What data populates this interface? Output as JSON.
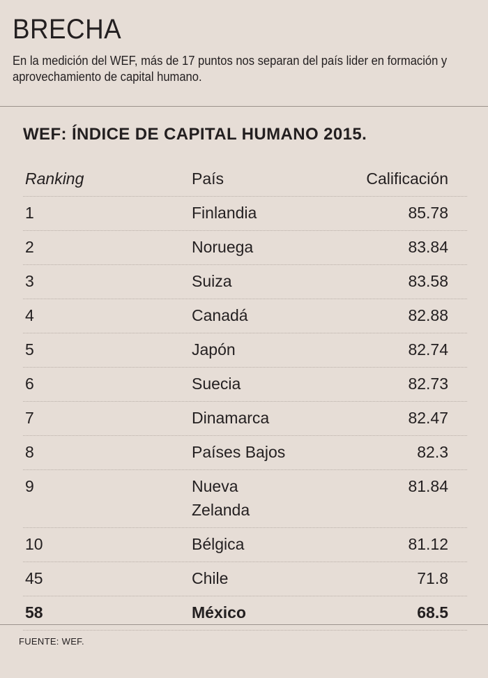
{
  "header": {
    "title": "BRECHA",
    "subtitle": "En la medición del WEF, más de 17 puntos nos separan del país lider en formación y aprovechamiento de capital humano."
  },
  "table": {
    "title": "WEF: ÍNDICE DE CAPITAL HUMANO 2015.",
    "columns": {
      "ranking": "Ranking",
      "country": "País",
      "score": "Calificación"
    },
    "rows": [
      {
        "rank": "1",
        "country": "Finlandia",
        "score": "85.78"
      },
      {
        "rank": "2",
        "country": "Noruega",
        "score": "83.84"
      },
      {
        "rank": "3",
        "country": "Suiza",
        "score": "83.58"
      },
      {
        "rank": "4",
        "country": "Canadá",
        "score": "82.88"
      },
      {
        "rank": "5",
        "country": "Japón",
        "score": "82.74"
      },
      {
        "rank": "6",
        "country": "Suecia",
        "score": "82.73"
      },
      {
        "rank": "7",
        "country": "Dinamarca",
        "score": "82.47"
      },
      {
        "rank": "8",
        "country": "Países Bajos",
        "score": "82.3"
      },
      {
        "rank": "9",
        "country": "Nueva Zelanda",
        "score": "81.84"
      },
      {
        "rank": "10",
        "country": "Bélgica",
        "score": "81.12"
      },
      {
        "rank": "45",
        "country": "Chile",
        "score": "71.8"
      },
      {
        "rank": "58",
        "country": "México",
        "score": "68.5",
        "highlight": true
      }
    ]
  },
  "source": "FUENTE: WEF."
}
